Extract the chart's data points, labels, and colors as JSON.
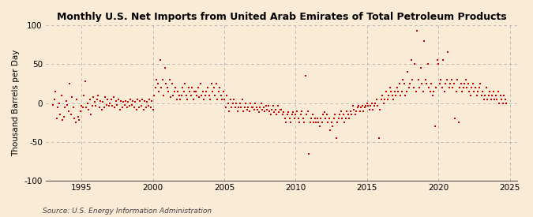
{
  "title": "Monthly U.S. Net Imports from United Arab Emirates of Total Petroleum Products",
  "ylabel": "Thousand Barrels per Day",
  "source": "Source: U.S. Energy Information Administration",
  "bg_color": "#faebd7",
  "plot_bg_color": "#faebd7",
  "marker_color": "#cc0000",
  "marker_size": 4,
  "ylim": [
    -100,
    100
  ],
  "yticks": [
    -100,
    -50,
    0,
    50,
    100
  ],
  "xlim_start": 1992.5,
  "xlim_end": 2025.5,
  "xticks": [
    1995,
    2000,
    2005,
    2010,
    2015,
    2020,
    2025
  ],
  "vline_years": [
    1995,
    2000,
    2005,
    2010,
    2015,
    2020,
    2025
  ],
  "data_points": [
    [
      1993.0,
      -2
    ],
    [
      1993.083,
      5
    ],
    [
      1993.167,
      15
    ],
    [
      1993.25,
      -20
    ],
    [
      1993.333,
      -5
    ],
    [
      1993.417,
      0
    ],
    [
      1993.5,
      -15
    ],
    [
      1993.583,
      10
    ],
    [
      1993.667,
      -22
    ],
    [
      1993.75,
      -18
    ],
    [
      1993.833,
      -5
    ],
    [
      1993.917,
      3
    ],
    [
      1994.0,
      -2
    ],
    [
      1994.083,
      -10
    ],
    [
      1994.167,
      25
    ],
    [
      1994.25,
      -15
    ],
    [
      1994.333,
      8
    ],
    [
      1994.417,
      -5
    ],
    [
      1994.5,
      -20
    ],
    [
      1994.583,
      -25
    ],
    [
      1994.667,
      5
    ],
    [
      1994.75,
      -18
    ],
    [
      1994.833,
      -22
    ],
    [
      1994.917,
      -10
    ],
    [
      1995.0,
      -3
    ],
    [
      1995.083,
      -5
    ],
    [
      1995.167,
      10
    ],
    [
      1995.25,
      28
    ],
    [
      1995.333,
      -5
    ],
    [
      1995.417,
      0
    ],
    [
      1995.5,
      -8
    ],
    [
      1995.583,
      5
    ],
    [
      1995.667,
      -15
    ],
    [
      1995.75,
      -3
    ],
    [
      1995.833,
      8
    ],
    [
      1995.917,
      2
    ],
    [
      1996.0,
      -3
    ],
    [
      1996.083,
      5
    ],
    [
      1996.167,
      10
    ],
    [
      1996.25,
      -5
    ],
    [
      1996.333,
      3
    ],
    [
      1996.417,
      -8
    ],
    [
      1996.5,
      2
    ],
    [
      1996.583,
      -5
    ],
    [
      1996.667,
      8
    ],
    [
      1996.75,
      -2
    ],
    [
      1996.833,
      5
    ],
    [
      1996.917,
      -3
    ],
    [
      1997.0,
      0
    ],
    [
      1997.083,
      5
    ],
    [
      1997.167,
      -3
    ],
    [
      1997.25,
      8
    ],
    [
      1997.333,
      -5
    ],
    [
      1997.417,
      3
    ],
    [
      1997.5,
      -2
    ],
    [
      1997.583,
      5
    ],
    [
      1997.667,
      -8
    ],
    [
      1997.75,
      3
    ],
    [
      1997.833,
      -5
    ],
    [
      1997.917,
      2
    ],
    [
      1998.0,
      -2
    ],
    [
      1998.083,
      3
    ],
    [
      1998.167,
      -5
    ],
    [
      1998.25,
      2
    ],
    [
      1998.333,
      -3
    ],
    [
      1998.417,
      5
    ],
    [
      1998.5,
      -2
    ],
    [
      1998.583,
      3
    ],
    [
      1998.667,
      -5
    ],
    [
      1998.75,
      2
    ],
    [
      1998.833,
      -8
    ],
    [
      1998.917,
      5
    ],
    [
      1999.0,
      -5
    ],
    [
      1999.083,
      3
    ],
    [
      1999.167,
      -3
    ],
    [
      1999.25,
      5
    ],
    [
      1999.333,
      -8
    ],
    [
      1999.417,
      3
    ],
    [
      1999.5,
      -5
    ],
    [
      1999.583,
      2
    ],
    [
      1999.667,
      -3
    ],
    [
      1999.75,
      5
    ],
    [
      1999.833,
      -5
    ],
    [
      1999.917,
      3
    ],
    [
      2000.0,
      -8
    ],
    [
      2000.083,
      10
    ],
    [
      2000.167,
      20
    ],
    [
      2000.25,
      30
    ],
    [
      2000.333,
      25
    ],
    [
      2000.417,
      15
    ],
    [
      2000.5,
      55
    ],
    [
      2000.583,
      20
    ],
    [
      2000.667,
      30
    ],
    [
      2000.75,
      10
    ],
    [
      2000.833,
      45
    ],
    [
      2000.917,
      25
    ],
    [
      2001.0,
      20
    ],
    [
      2001.083,
      15
    ],
    [
      2001.167,
      30
    ],
    [
      2001.25,
      8
    ],
    [
      2001.333,
      25
    ],
    [
      2001.417,
      10
    ],
    [
      2001.5,
      15
    ],
    [
      2001.583,
      20
    ],
    [
      2001.667,
      5
    ],
    [
      2001.75,
      15
    ],
    [
      2001.833,
      10
    ],
    [
      2001.917,
      5
    ],
    [
      2002.0,
      10
    ],
    [
      2002.083,
      20
    ],
    [
      2002.167,
      15
    ],
    [
      2002.25,
      25
    ],
    [
      2002.333,
      10
    ],
    [
      2002.417,
      5
    ],
    [
      2002.5,
      20
    ],
    [
      2002.583,
      15
    ],
    [
      2002.667,
      10
    ],
    [
      2002.75,
      20
    ],
    [
      2002.833,
      5
    ],
    [
      2002.917,
      15
    ],
    [
      2003.0,
      15
    ],
    [
      2003.083,
      10
    ],
    [
      2003.167,
      20
    ],
    [
      2003.25,
      8
    ],
    [
      2003.333,
      25
    ],
    [
      2003.417,
      10
    ],
    [
      2003.5,
      15
    ],
    [
      2003.583,
      5
    ],
    [
      2003.667,
      10
    ],
    [
      2003.75,
      15
    ],
    [
      2003.833,
      20
    ],
    [
      2003.917,
      10
    ],
    [
      2004.0,
      5
    ],
    [
      2004.083,
      25
    ],
    [
      2004.167,
      15
    ],
    [
      2004.25,
      20
    ],
    [
      2004.333,
      10
    ],
    [
      2004.417,
      25
    ],
    [
      2004.5,
      5
    ],
    [
      2004.583,
      15
    ],
    [
      2004.667,
      20
    ],
    [
      2004.75,
      10
    ],
    [
      2004.833,
      5
    ],
    [
      2004.917,
      15
    ],
    [
      2005.0,
      5
    ],
    [
      2005.083,
      -5
    ],
    [
      2005.167,
      10
    ],
    [
      2005.25,
      0
    ],
    [
      2005.333,
      -10
    ],
    [
      2005.417,
      5
    ],
    [
      2005.5,
      -5
    ],
    [
      2005.583,
      0
    ],
    [
      2005.667,
      5
    ],
    [
      2005.75,
      -5
    ],
    [
      2005.833,
      0
    ],
    [
      2005.917,
      -10
    ],
    [
      2006.0,
      -5
    ],
    [
      2006.083,
      0
    ],
    [
      2006.167,
      -5
    ],
    [
      2006.25,
      5
    ],
    [
      2006.333,
      -10
    ],
    [
      2006.417,
      -5
    ],
    [
      2006.5,
      0
    ],
    [
      2006.583,
      -8
    ],
    [
      2006.667,
      -5
    ],
    [
      2006.75,
      -10
    ],
    [
      2006.833,
      0
    ],
    [
      2006.917,
      -5
    ],
    [
      2007.0,
      -5
    ],
    [
      2007.083,
      -8
    ],
    [
      2007.167,
      0
    ],
    [
      2007.25,
      -5
    ],
    [
      2007.333,
      -8
    ],
    [
      2007.417,
      -12
    ],
    [
      2007.5,
      -5
    ],
    [
      2007.583,
      0
    ],
    [
      2007.667,
      -8
    ],
    [
      2007.75,
      -5
    ],
    [
      2007.833,
      -10
    ],
    [
      2007.917,
      -3
    ],
    [
      2008.0,
      -8
    ],
    [
      2008.083,
      -3
    ],
    [
      2008.167,
      -10
    ],
    [
      2008.25,
      -15
    ],
    [
      2008.333,
      -8
    ],
    [
      2008.417,
      -3
    ],
    [
      2008.5,
      -12
    ],
    [
      2008.583,
      -8
    ],
    [
      2008.667,
      -15
    ],
    [
      2008.75,
      -3
    ],
    [
      2008.833,
      -12
    ],
    [
      2008.917,
      -8
    ],
    [
      2009.0,
      -8
    ],
    [
      2009.083,
      -15
    ],
    [
      2009.167,
      -12
    ],
    [
      2009.25,
      -20
    ],
    [
      2009.333,
      -25
    ],
    [
      2009.417,
      -15
    ],
    [
      2009.5,
      -12
    ],
    [
      2009.583,
      -20
    ],
    [
      2009.667,
      -25
    ],
    [
      2009.75,
      -15
    ],
    [
      2009.833,
      -12
    ],
    [
      2009.917,
      -20
    ],
    [
      2010.0,
      -15
    ],
    [
      2010.083,
      -10
    ],
    [
      2010.167,
      -20
    ],
    [
      2010.25,
      -25
    ],
    [
      2010.333,
      -15
    ],
    [
      2010.417,
      -10
    ],
    [
      2010.5,
      -20
    ],
    [
      2010.583,
      -25
    ],
    [
      2010.667,
      35
    ],
    [
      2010.75,
      -15
    ],
    [
      2010.833,
      -10
    ],
    [
      2010.917,
      -65
    ],
    [
      2011.0,
      -25
    ],
    [
      2011.083,
      -20
    ],
    [
      2011.167,
      -15
    ],
    [
      2011.25,
      -25
    ],
    [
      2011.333,
      -20
    ],
    [
      2011.417,
      -25
    ],
    [
      2011.5,
      -20
    ],
    [
      2011.583,
      -25
    ],
    [
      2011.667,
      -30
    ],
    [
      2011.75,
      -20
    ],
    [
      2011.833,
      -25
    ],
    [
      2011.917,
      -15
    ],
    [
      2012.0,
      -12
    ],
    [
      2012.083,
      -20
    ],
    [
      2012.167,
      -15
    ],
    [
      2012.25,
      -25
    ],
    [
      2012.333,
      -20
    ],
    [
      2012.417,
      -35
    ],
    [
      2012.5,
      -25
    ],
    [
      2012.583,
      -30
    ],
    [
      2012.667,
      -20
    ],
    [
      2012.75,
      -15
    ],
    [
      2012.833,
      -45
    ],
    [
      2012.917,
      -25
    ],
    [
      2013.0,
      -20
    ],
    [
      2013.083,
      -15
    ],
    [
      2013.167,
      -10
    ],
    [
      2013.25,
      -20
    ],
    [
      2013.333,
      -15
    ],
    [
      2013.417,
      -25
    ],
    [
      2013.5,
      -20
    ],
    [
      2013.583,
      -10
    ],
    [
      2013.667,
      -15
    ],
    [
      2013.75,
      -20
    ],
    [
      2013.833,
      -10
    ],
    [
      2013.917,
      -15
    ],
    [
      2014.0,
      -3
    ],
    [
      2014.083,
      -8
    ],
    [
      2014.167,
      -15
    ],
    [
      2014.25,
      -10
    ],
    [
      2014.333,
      -5
    ],
    [
      2014.417,
      -3
    ],
    [
      2014.5,
      -10
    ],
    [
      2014.583,
      -5
    ],
    [
      2014.667,
      -3
    ],
    [
      2014.75,
      -10
    ],
    [
      2014.833,
      -5
    ],
    [
      2014.917,
      -3
    ],
    [
      2015.0,
      0
    ],
    [
      2015.083,
      -3
    ],
    [
      2015.167,
      -8
    ],
    [
      2015.25,
      -3
    ],
    [
      2015.333,
      0
    ],
    [
      2015.417,
      -8
    ],
    [
      2015.5,
      -3
    ],
    [
      2015.583,
      0
    ],
    [
      2015.667,
      5
    ],
    [
      2015.75,
      -3
    ],
    [
      2015.833,
      -45
    ],
    [
      2015.917,
      -8
    ],
    [
      2016.0,
      5
    ],
    [
      2016.083,
      10
    ],
    [
      2016.167,
      0
    ],
    [
      2016.25,
      5
    ],
    [
      2016.333,
      15
    ],
    [
      2016.417,
      5
    ],
    [
      2016.5,
      10
    ],
    [
      2016.583,
      20
    ],
    [
      2016.667,
      15
    ],
    [
      2016.75,
      10
    ],
    [
      2016.833,
      5
    ],
    [
      2016.917,
      15
    ],
    [
      2017.0,
      10
    ],
    [
      2017.083,
      20
    ],
    [
      2017.167,
      15
    ],
    [
      2017.25,
      25
    ],
    [
      2017.333,
      10
    ],
    [
      2017.417,
      15
    ],
    [
      2017.5,
      30
    ],
    [
      2017.583,
      25
    ],
    [
      2017.667,
      10
    ],
    [
      2017.75,
      15
    ],
    [
      2017.833,
      40
    ],
    [
      2017.917,
      20
    ],
    [
      2018.0,
      25
    ],
    [
      2018.083,
      55
    ],
    [
      2018.167,
      30
    ],
    [
      2018.25,
      20
    ],
    [
      2018.333,
      50
    ],
    [
      2018.417,
      15
    ],
    [
      2018.5,
      93
    ],
    [
      2018.583,
      30
    ],
    [
      2018.667,
      20
    ],
    [
      2018.75,
      45
    ],
    [
      2018.833,
      25
    ],
    [
      2018.917,
      15
    ],
    [
      2019.0,
      80
    ],
    [
      2019.083,
      30
    ],
    [
      2019.167,
      25
    ],
    [
      2019.25,
      50
    ],
    [
      2019.333,
      20
    ],
    [
      2019.417,
      15
    ],
    [
      2019.5,
      25
    ],
    [
      2019.583,
      10
    ],
    [
      2019.667,
      15
    ],
    [
      2019.75,
      -30
    ],
    [
      2019.833,
      20
    ],
    [
      2019.917,
      55
    ],
    [
      2020.0,
      50
    ],
    [
      2020.083,
      25
    ],
    [
      2020.167,
      30
    ],
    [
      2020.25,
      20
    ],
    [
      2020.333,
      55
    ],
    [
      2020.417,
      15
    ],
    [
      2020.5,
      25
    ],
    [
      2020.583,
      30
    ],
    [
      2020.667,
      65
    ],
    [
      2020.75,
      20
    ],
    [
      2020.833,
      25
    ],
    [
      2020.917,
      30
    ],
    [
      2021.0,
      20
    ],
    [
      2021.083,
      25
    ],
    [
      2021.167,
      -20
    ],
    [
      2021.25,
      15
    ],
    [
      2021.333,
      30
    ],
    [
      2021.417,
      -25
    ],
    [
      2021.5,
      20
    ],
    [
      2021.583,
      25
    ],
    [
      2021.667,
      15
    ],
    [
      2021.75,
      20
    ],
    [
      2021.833,
      25
    ],
    [
      2021.917,
      30
    ],
    [
      2022.0,
      20
    ],
    [
      2022.083,
      25
    ],
    [
      2022.167,
      15
    ],
    [
      2022.25,
      10
    ],
    [
      2022.333,
      20
    ],
    [
      2022.417,
      25
    ],
    [
      2022.5,
      15
    ],
    [
      2022.583,
      20
    ],
    [
      2022.667,
      10
    ],
    [
      2022.75,
      15
    ],
    [
      2022.833,
      20
    ],
    [
      2022.917,
      25
    ],
    [
      2023.0,
      10
    ],
    [
      2023.083,
      15
    ],
    [
      2023.167,
      5
    ],
    [
      2023.25,
      10
    ],
    [
      2023.333,
      20
    ],
    [
      2023.417,
      5
    ],
    [
      2023.5,
      10
    ],
    [
      2023.583,
      15
    ],
    [
      2023.667,
      5
    ],
    [
      2023.75,
      10
    ],
    [
      2023.833,
      15
    ],
    [
      2023.917,
      5
    ],
    [
      2024.0,
      10
    ],
    [
      2024.083,
      5
    ],
    [
      2024.167,
      15
    ],
    [
      2024.25,
      0
    ],
    [
      2024.333,
      10
    ],
    [
      2024.417,
      5
    ],
    [
      2024.5,
      0
    ],
    [
      2024.583,
      10
    ],
    [
      2024.667,
      5
    ],
    [
      2024.75,
      0
    ]
  ]
}
